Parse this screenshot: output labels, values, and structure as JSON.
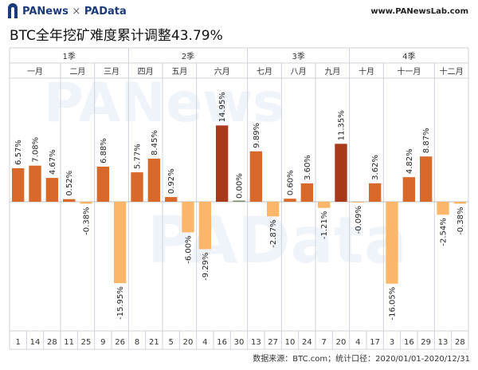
{
  "header": {
    "brand_a": "PANews",
    "brand_sep": "×",
    "brand_b": "PAData",
    "site": "www.PANewsLab.com"
  },
  "watermark": {
    "top": "PANews",
    "bottom": "PAData"
  },
  "footer": {
    "source": "数据来源：BTC.com；统计口径：2020/01/01-2020/12/31"
  },
  "colors": {
    "positive": "#d9692a",
    "negative": "#fbb66a",
    "highlight": "#a8391a",
    "grid": "#cfd3da"
  },
  "chart_data": {
    "type": "bar",
    "title": "BTC全年挖矿难度累计调整43.79%",
    "xlabel": "",
    "ylabel": "",
    "grid": true,
    "legend": "none",
    "value_unit": "%",
    "ylim": [
      -17,
      16
    ],
    "quarters": [
      {
        "label": "1季",
        "months": [
          0,
          1,
          2
        ]
      },
      {
        "label": "2季",
        "months": [
          3,
          4,
          5
        ]
      },
      {
        "label": "3季",
        "months": [
          6,
          7,
          8
        ]
      },
      {
        "label": "4季",
        "months": [
          9,
          10,
          11
        ]
      }
    ],
    "months": [
      {
        "label": "一月",
        "days": [
          "1",
          "14",
          "28"
        ],
        "values": [
          6.57,
          7.08,
          4.67
        ]
      },
      {
        "label": "二月",
        "days": [
          "11",
          "25"
        ],
        "values": [
          0.52,
          -0.38
        ]
      },
      {
        "label": "三月",
        "days": [
          "9",
          "26"
        ],
        "values": [
          6.88,
          -15.95
        ]
      },
      {
        "label": "四月",
        "days": [
          "8",
          "21"
        ],
        "values": [
          5.77,
          8.45
        ]
      },
      {
        "label": "五月",
        "days": [
          "5",
          "20"
        ],
        "values": [
          0.92,
          -6.0
        ]
      },
      {
        "label": "六月",
        "days": [
          "4",
          "16",
          "30"
        ],
        "values": [
          -9.29,
          14.95,
          0.0
        ]
      },
      {
        "label": "七月",
        "days": [
          "13",
          "27"
        ],
        "values": [
          9.89,
          -2.87
        ]
      },
      {
        "label": "八月",
        "days": [
          "10",
          "24"
        ],
        "values": [
          0.6,
          3.6
        ]
      },
      {
        "label": "九月",
        "days": [
          "7",
          "20"
        ],
        "values": [
          -1.21,
          11.35
        ]
      },
      {
        "label": "十月",
        "days": [
          "4",
          "17"
        ],
        "values": [
          -0.09,
          3.62
        ]
      },
      {
        "label": "十一月",
        "days": [
          "3",
          "16",
          "29"
        ],
        "values": [
          -16.05,
          4.82,
          8.87
        ]
      },
      {
        "label": "十二月",
        "days": [
          "13",
          "28"
        ],
        "values": [
          -2.54,
          -0.38
        ]
      }
    ],
    "labels": [
      "6.57%",
      "7.08%",
      "4.67%",
      "0.52%",
      "-0.38%",
      "6.88%",
      "-15.95%",
      "5.77%",
      "8.45%",
      "0.92%",
      "-6.00%",
      "-9.29%",
      "14.95%",
      "0.00%",
      "9.89%",
      "-2.87%",
      "0.60%",
      "3.60%",
      "-1.21%",
      "11.35%",
      "-0.09%",
      "3.62%",
      "-16.05%",
      "4.82%",
      "8.87%",
      "-2.54%",
      "-0.38%"
    ],
    "highlights": [
      "14.95%",
      "11.35%"
    ]
  }
}
